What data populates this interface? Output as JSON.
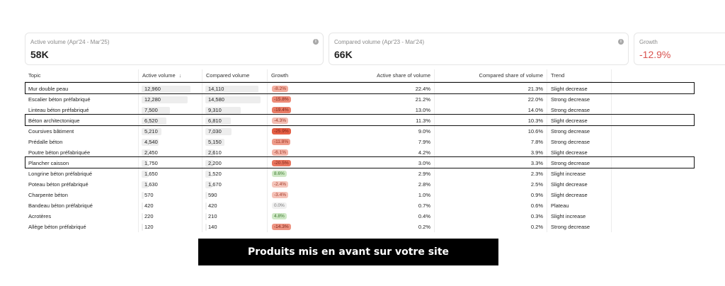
{
  "cards": {
    "active": {
      "label": "Active volume (Apr'24 - Mar'25)",
      "value": "58K"
    },
    "compared": {
      "label": "Compared volume (Apr'23 - Mar'24)",
      "value": "66K"
    },
    "growth": {
      "label": "Growth",
      "value": "-12.9%"
    }
  },
  "table": {
    "headers": {
      "topic": "Topic",
      "active": "Active volume",
      "sort_icon": "↓",
      "compared": "Compared volume",
      "growth": "Growth",
      "active_share": "Active share of volume",
      "compared_share": "Compared share of volume",
      "trend": "Trend"
    },
    "rows": [
      {
        "topic": "Mur double peau",
        "active": "12,960",
        "compared": "14,110",
        "growth": "-8.2%",
        "active_share": "22.4%",
        "compared_share": "21.3%",
        "trend": "Slight decrease"
      },
      {
        "topic": "Escalier béton préfabriqué",
        "active": "12,280",
        "compared": "14,580",
        "growth": "-15.8%",
        "active_share": "21.2%",
        "compared_share": "22.0%",
        "trend": "Strong decrease"
      },
      {
        "topic": "Linteau béton préfabriqué",
        "active": "7,500",
        "compared": "9,310",
        "growth": "-19.4%",
        "active_share": "13.0%",
        "compared_share": "14.0%",
        "trend": "Strong decrease"
      },
      {
        "topic": "Béton architectonique",
        "active": "6,520",
        "compared": "6,810",
        "growth": "-4.3%",
        "active_share": "11.3%",
        "compared_share": "10.3%",
        "trend": "Slight decrease"
      },
      {
        "topic": "Coursives bâtiment",
        "active": "5,210",
        "compared": "7,030",
        "growth": "-25.9%",
        "active_share": "9.0%",
        "compared_share": "10.6%",
        "trend": "Strong decrease"
      },
      {
        "topic": "Prédalle béton",
        "active": "4,540",
        "compared": "5,150",
        "growth": "-11.8%",
        "active_share": "7.9%",
        "compared_share": "7.8%",
        "trend": "Strong decrease"
      },
      {
        "topic": "Poutre béton préfabriquée",
        "active": "2,450",
        "compared": "2,610",
        "growth": "-6.1%",
        "active_share": "4.2%",
        "compared_share": "3.9%",
        "trend": "Slight decrease"
      },
      {
        "topic": "Plancher caisson",
        "active": "1,750",
        "compared": "2,200",
        "growth": "-20.5%",
        "active_share": "3.0%",
        "compared_share": "3.3%",
        "trend": "Strong decrease"
      },
      {
        "topic": "Longrine béton préfabriqué",
        "active": "1,650",
        "compared": "1,520",
        "growth": "8.6%",
        "active_share": "2.9%",
        "compared_share": "2.3%",
        "trend": "Slight increase"
      },
      {
        "topic": "Poteau béton préfabriqué",
        "active": "1,630",
        "compared": "1,670",
        "growth": "-2.4%",
        "active_share": "2.8%",
        "compared_share": "2.5%",
        "trend": "Slight decrease"
      },
      {
        "topic": "Charpente béton",
        "active": "570",
        "compared": "590",
        "growth": "-3.4%",
        "active_share": "1.0%",
        "compared_share": "0.9%",
        "trend": "Slight decrease"
      },
      {
        "topic": "Bandeau béton préfabriqué",
        "active": "420",
        "compared": "420",
        "growth": "0.0%",
        "active_share": "0.7%",
        "compared_share": "0.6%",
        "trend": "Plateau"
      },
      {
        "topic": "Acrotères",
        "active": "220",
        "compared": "210",
        "growth": "4.8%",
        "active_share": "0.4%",
        "compared_share": "0.3%",
        "trend": "Slight increase"
      },
      {
        "topic": "Allège béton préfabriqué",
        "active": "120",
        "compared": "140",
        "growth": "-14.3%",
        "active_share": "0.2%",
        "compared_share": "0.2%",
        "trend": "Strong decrease"
      }
    ],
    "highlighted_rows": [
      0,
      3,
      7
    ]
  },
  "colors": {
    "negative_text": "#d9534f",
    "bar": "#ededed",
    "highlight_border": "#111111"
  },
  "banner": {
    "text": "Produits mis en avant sur votre site"
  }
}
